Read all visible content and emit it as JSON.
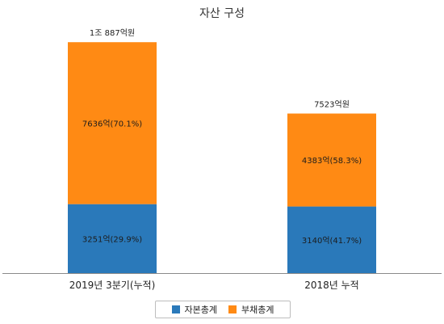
{
  "chart_data": {
    "type": "bar",
    "stacked": true,
    "title": "자산 구성",
    "categories": [
      "2019년 3분기(누적)",
      "2018년 누적"
    ],
    "totals": [
      "1조 887억원",
      "7523억원"
    ],
    "series": [
      {
        "name": "자본총계",
        "color": "#2a79ba",
        "values": [
          3251,
          3140
        ],
        "labels": [
          "3251억(29.9%)",
          "3140억(41.7%)"
        ]
      },
      {
        "name": "부채총계",
        "color": "#ff8a14",
        "values": [
          7636,
          4383
        ],
        "labels": [
          "7636억(70.1%)",
          "4383억(58.3%)"
        ]
      }
    ],
    "ylim": [
      0,
      11200
    ],
    "grid": false,
    "legend_position": "bottom"
  }
}
